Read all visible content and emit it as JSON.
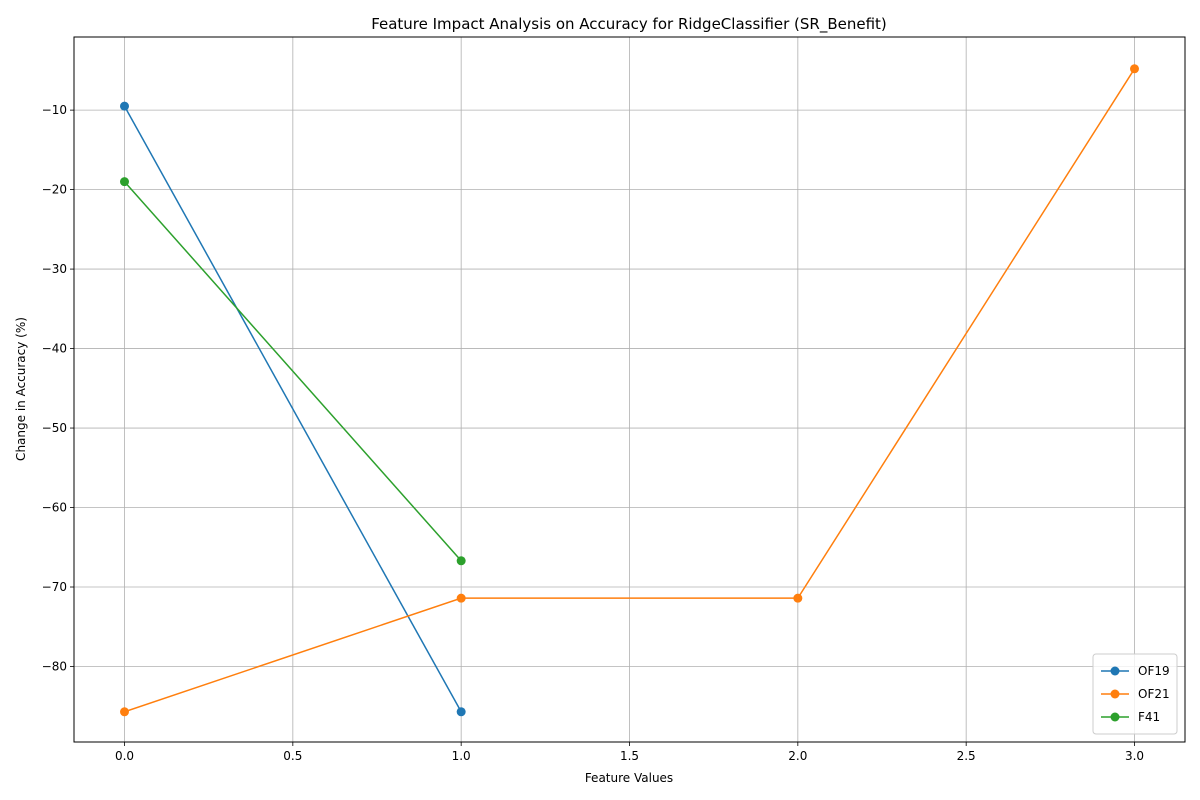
{
  "chart_data": {
    "type": "line",
    "title": "Feature Impact Analysis on Accuracy for RidgeClassifier (SR_Benefit)",
    "xlabel": "Feature Values",
    "ylabel": "Change in Accuracy (%)",
    "xlim": [
      -0.15,
      3.15
    ],
    "ylim": [
      -89.5,
      -0.8
    ],
    "xticks": [
      0.0,
      0.5,
      1.0,
      1.5,
      2.0,
      2.5,
      3.0
    ],
    "xtick_labels": [
      "0.0",
      "0.5",
      "1.0",
      "1.5",
      "2.0",
      "2.5",
      "3.0"
    ],
    "yticks": [
      -80,
      -70,
      -60,
      -50,
      -40,
      -30,
      -20,
      -10
    ],
    "ytick_labels": [
      "−80",
      "−70",
      "−60",
      "−50",
      "−40",
      "−30",
      "−20",
      "−10"
    ],
    "grid": true,
    "legend_position": "lower-right",
    "series": [
      {
        "name": "OF19",
        "color": "#1f77b4",
        "x": [
          0,
          1
        ],
        "y": [
          -9.5,
          -85.7
        ]
      },
      {
        "name": "OF21",
        "color": "#ff7f0e",
        "x": [
          0,
          1,
          2,
          3
        ],
        "y": [
          -85.7,
          -71.4,
          -71.4,
          -4.8
        ]
      },
      {
        "name": "F41",
        "color": "#2ca02c",
        "x": [
          0,
          1
        ],
        "y": [
          -19.0,
          -66.7
        ]
      }
    ]
  }
}
